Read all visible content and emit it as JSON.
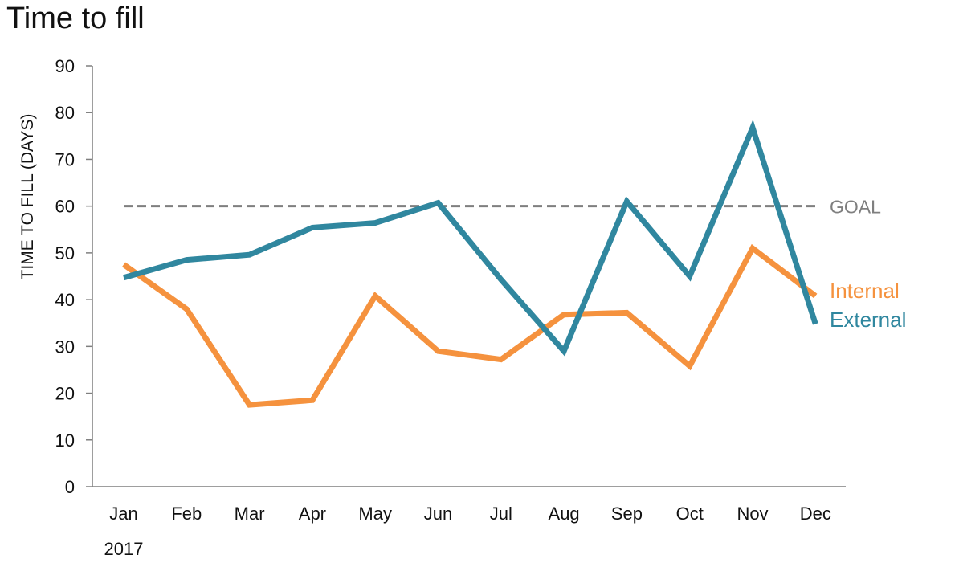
{
  "chart_data": {
    "type": "line",
    "title": "Time to fill",
    "xlabel": "",
    "ylabel": "TIME TO FILL (DAYS)",
    "year_label": "2017",
    "categories": [
      "Jan",
      "Feb",
      "Mar",
      "Apr",
      "May",
      "Jun",
      "Jul",
      "Aug",
      "Sep",
      "Oct",
      "Nov",
      "Dec"
    ],
    "ylim": [
      0,
      90
    ],
    "yticks": [
      0,
      10,
      20,
      30,
      40,
      50,
      60,
      70,
      80,
      90
    ],
    "grid": false,
    "legend_placement": "right, at line ends",
    "series": [
      {
        "name": "Internal",
        "color": "#F5923E",
        "values": [
          47.5,
          38,
          17.5,
          18.5,
          40.8,
          29,
          27.2,
          36.8,
          37.2,
          25.8,
          51,
          40.8
        ]
      },
      {
        "name": "External",
        "color": "#30879F",
        "values": [
          44.7,
          48.5,
          49.6,
          55.4,
          56.4,
          60.7,
          44.3,
          29,
          61,
          45,
          76.8,
          34.8
        ]
      }
    ],
    "reference_line": {
      "label": "GOAL",
      "value": 60,
      "color": "#7F7F7F",
      "style": "dashed"
    },
    "axis_color": "#7F7F7F",
    "text_color": "#111111"
  }
}
